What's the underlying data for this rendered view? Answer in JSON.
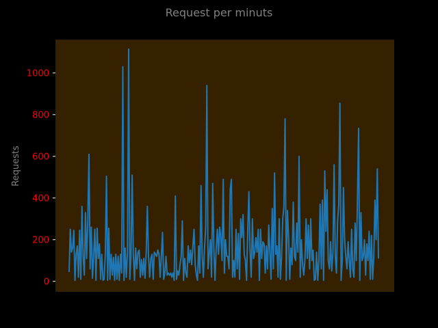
{
  "chart_data": {
    "type": "line",
    "title": "Request per minuts",
    "xlabel": "",
    "ylabel": "Requests",
    "ylim": [
      -50,
      1160
    ],
    "yticks": [
      0,
      200,
      400,
      600,
      800,
      1000
    ],
    "ytick_labels": [
      "0",
      "200",
      "400",
      "600",
      "800",
      "1000"
    ],
    "xticks_visible": false,
    "grid": false,
    "series": [
      {
        "name": "Requests",
        "color": "#1f77b4",
        "values": [
          45,
          250,
          140,
          160,
          245,
          5,
          130,
          170,
          20,
          245,
          10,
          360,
          120,
          30,
          330,
          110,
          290,
          610,
          60,
          260,
          15,
          120,
          250,
          5,
          255,
          110,
          180,
          10,
          130,
          5,
          10,
          130,
          505,
          5,
          255,
          10,
          130,
          30,
          115,
          5,
          130,
          10,
          120,
          5,
          130,
          40,
          1030,
          5,
          160,
          20,
          140,
          1115,
          10,
          120,
          510,
          130,
          5,
          160,
          60,
          140,
          150,
          20,
          105,
          30,
          110,
          15,
          130,
          360,
          120,
          20,
          110,
          130,
          10,
          140,
          130,
          120,
          150,
          130,
          20,
          120,
          235,
          10,
          40,
          120,
          30,
          40,
          30,
          40,
          20,
          40,
          5,
          410,
          10,
          50,
          30,
          80,
          120,
          290,
          5,
          110,
          40,
          20,
          170,
          90,
          150,
          80,
          170,
          250,
          80,
          30,
          5,
          170,
          40,
          460,
          120,
          20,
          160,
          260,
          940,
          60,
          130,
          200,
          20,
          470,
          150,
          5,
          160,
          250,
          130,
          260,
          210,
          100,
          490,
          40,
          200,
          120,
          120,
          60,
          440,
          490,
          20,
          100,
          20,
          250,
          60,
          230,
          10,
          300,
          210,
          320,
          130,
          100,
          5,
          240,
          430,
          150,
          20,
          300,
          110,
          140,
          210,
          140,
          250,
          5,
          250,
          110,
          190,
          180,
          40,
          170,
          60,
          270,
          140,
          10,
          350,
          60,
          520,
          130,
          170,
          20,
          300,
          10,
          120,
          300,
          360,
          780,
          5,
          340,
          220,
          10,
          160,
          80,
          380,
          120,
          100,
          280,
          140,
          600,
          20,
          200,
          80,
          30,
          100,
          300,
          110,
          270,
          60,
          300,
          100,
          150,
          5,
          10,
          140,
          5,
          100,
          370,
          60,
          390,
          5,
          530,
          240,
          440,
          100,
          60,
          190,
          50,
          140,
          560,
          120,
          40,
          290,
          370,
          855,
          5,
          100,
          450,
          200,
          120,
          60,
          190,
          100,
          20,
          250,
          60,
          20,
          280,
          100,
          390,
          735,
          5,
          330,
          100,
          120,
          200,
          30,
          180,
          100,
          240,
          10,
          220,
          10,
          120,
          390,
          200,
          540,
          110
        ]
      }
    ]
  },
  "colors": {
    "figure_bg": "#000000",
    "plot_bg": "#352000",
    "line": "#1f77b4",
    "title": "#808080",
    "ylabel": "#808080",
    "tick_labels": "#ff0000",
    "ticks": "#ffffff"
  }
}
